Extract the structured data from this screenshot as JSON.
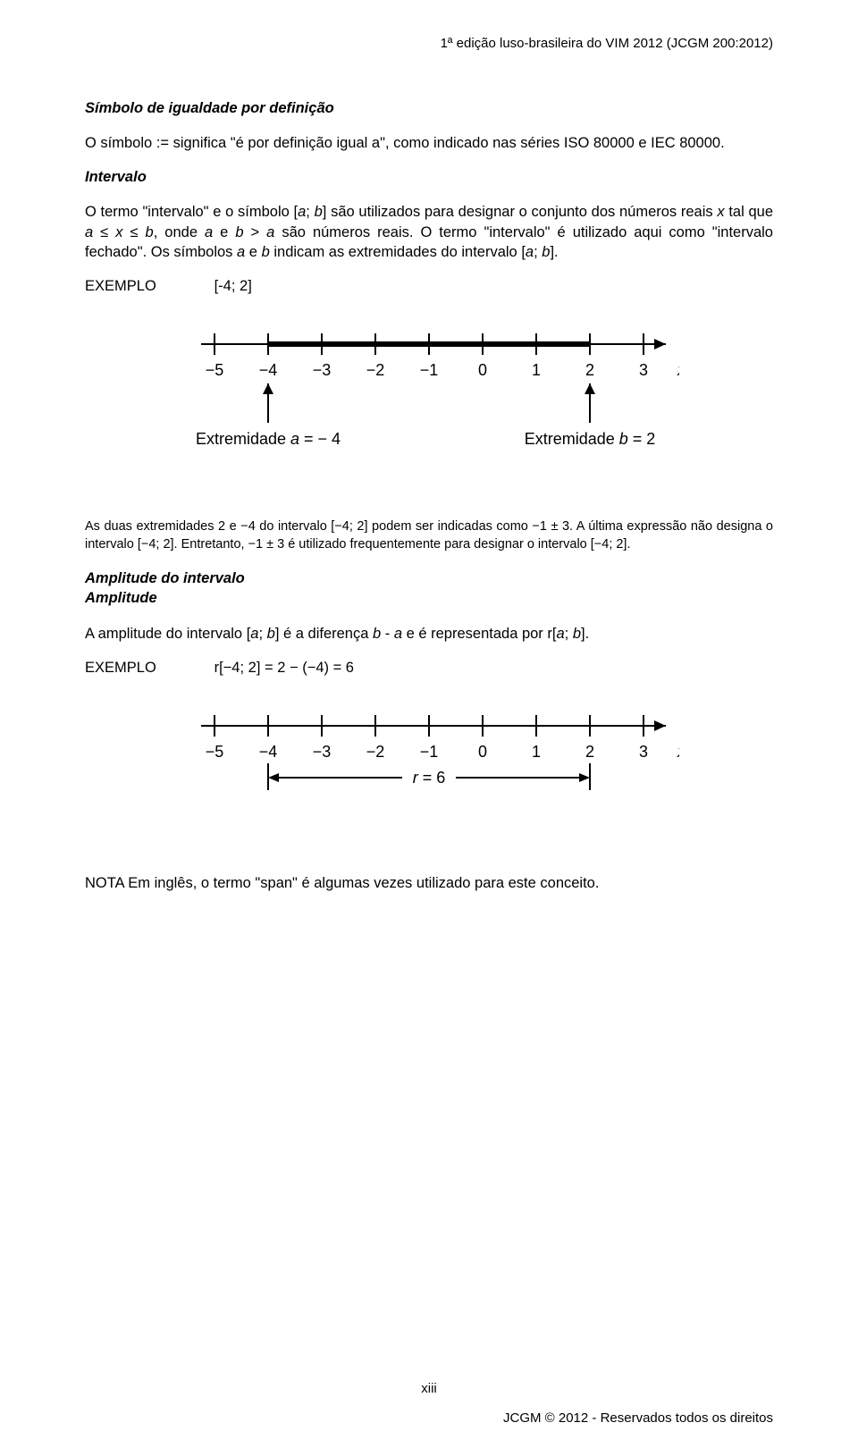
{
  "header": {
    "text": "1ª edição luso-brasileira do VIM 2012 (JCGM 200:2012)"
  },
  "section1": {
    "title": "Símbolo de igualdade por definição",
    "body": "O símbolo := significa \"é por definição igual a\", como indicado nas séries ISO 80000 e IEC 80000."
  },
  "section2": {
    "title": "Intervalo",
    "body_parts": {
      "p1": "O termo \"intervalo\" e o símbolo [",
      "a1": "a",
      "p2": "; ",
      "b1": "b",
      "p3": "] são utilizados para designar o conjunto dos números reais ",
      "x1": "x",
      "p4": " tal que ",
      "a2": "a",
      "p5": " ≤ ",
      "x2": "x",
      "p6": " ≤ ",
      "b2": "b",
      "p7": ", onde ",
      "a3": "a",
      "p8": " e ",
      "b3": "b",
      "p9": " > ",
      "a4": "a",
      "p10": " são números reais. O termo \"intervalo\" é utilizado aqui como \"intervalo fechado\". Os símbolos ",
      "a5": "a",
      "p11": " e ",
      "b4": "b",
      "p12": " indicam as extremidades do intervalo [",
      "a6": "a",
      "p13": "; ",
      "b5": "b",
      "p14": "]."
    }
  },
  "example1": {
    "label": "EXEMPLO",
    "value": "[-4; 2]"
  },
  "diagram1": {
    "ticks": [
      "−5",
      "−4",
      "−3",
      "−2",
      "−1",
      "0",
      "1",
      "2",
      "3"
    ],
    "var_label": "x",
    "bold_start_idx": 1,
    "bold_end_idx": 7,
    "left_label_prefix": "Extremidade ",
    "left_label_var": "a",
    "left_label_suffix": " = − 4",
    "right_label_prefix": "Extremidade ",
    "right_label_var": "b",
    "right_label_suffix": " = 2",
    "colors": {
      "line": "#000000",
      "bg": "#ffffff"
    }
  },
  "post_diagram_text": "As duas extremidades 2 e −4 do intervalo [−4; 2] podem ser indicadas como −1 ± 3. A última expressão não designa o intervalo [−4; 2]. Entretanto, −1 ± 3 é utilizado frequentemente para designar o intervalo [−4; 2].",
  "section3": {
    "title1": "Amplitude do intervalo",
    "title2": "Amplitude",
    "body_parts": {
      "p1": "A amplitude do intervalo [",
      "a1": "a",
      "p2": "; ",
      "b1": "b",
      "p3": "] é a diferença ",
      "b2": "b",
      "p4": " - ",
      "a2": "a",
      "p5": " e é representada por r[",
      "a3": "a",
      "p6": "; ",
      "b3": "b",
      "p7": "]."
    }
  },
  "example2": {
    "label": "EXEMPLO",
    "value": "r[−4; 2] = 2 − (−4) = 6"
  },
  "diagram2": {
    "ticks": [
      "−5",
      "−4",
      "−3",
      "−2",
      "−1",
      "0",
      "1",
      "2",
      "3"
    ],
    "var_label": "x",
    "bracket_start_idx": 1,
    "bracket_end_idx": 7,
    "center_label_prefix": "r",
    "center_label_suffix": " = 6",
    "colors": {
      "line": "#000000",
      "bg": "#ffffff"
    }
  },
  "nota": "NOTA  Em inglês, o termo \"span\" é algumas vezes utilizado para este conceito.",
  "footer": {
    "page": "xiii",
    "right": "JCGM © 2012 - Reservados todos os direitos"
  }
}
